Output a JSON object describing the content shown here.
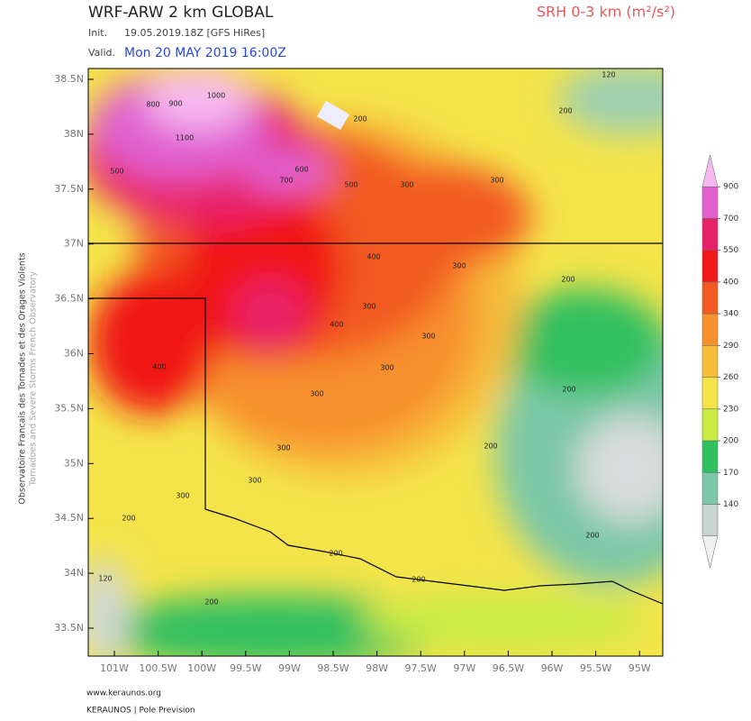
{
  "header": {
    "title": "WRF-ARW 2 km GLOBAL",
    "init_label": "Init.",
    "init": "19.05.2019.18Z [GFS HiRes]",
    "valid_label": "Valid.",
    "valid": "Mon 20 MAY 2019 16:00Z",
    "field": "SRH 0-3 km (m²/s²)"
  },
  "side": {
    "line1": "Observatoire Francais des Tornades et des Orages Violents",
    "line2": "Tornadoes and Severe Storms French Observatory"
  },
  "map": {
    "lat_labels": [
      "38.5N",
      "38N",
      "37.5N",
      "37N",
      "36.5N",
      "36N",
      "35.5N",
      "35N",
      "34.5N",
      "34N",
      "33.5N"
    ],
    "lon_labels": [
      "101W",
      "100.5W",
      "100W",
      "99.5W",
      "99W",
      "98.5W",
      "98W",
      "97.5W",
      "97W",
      "96.5W",
      "96W",
      "95.5W",
      "95W"
    ],
    "contour_labels": [
      "120",
      "200",
      "200",
      "300",
      "300",
      "300",
      "400",
      "400",
      "500",
      "600",
      "700",
      "800",
      "900",
      "1000",
      "1100",
      "300",
      "300",
      "300",
      "300",
      "300",
      "300",
      "200",
      "200",
      "200",
      "200",
      "200",
      "200",
      "200",
      "120",
      "400",
      "500",
      "300",
      "200"
    ]
  },
  "colorbar": {
    "ticks": [
      900,
      700,
      550,
      400,
      340,
      290,
      260,
      230,
      200,
      170,
      140
    ],
    "colors": [
      "#f7b8ef",
      "#e060d0",
      "#e8206a",
      "#f01818",
      "#f25a24",
      "#f7902e",
      "#f7bc3a",
      "#f4e44a",
      "#c8ec44",
      "#30c060",
      "#7cc8a8",
      "#c8d4d0",
      "#f0f0f0"
    ]
  },
  "footer": {
    "site": "www.keraunos.org",
    "credit": "KERAUNOS | Pole Prevision"
  }
}
